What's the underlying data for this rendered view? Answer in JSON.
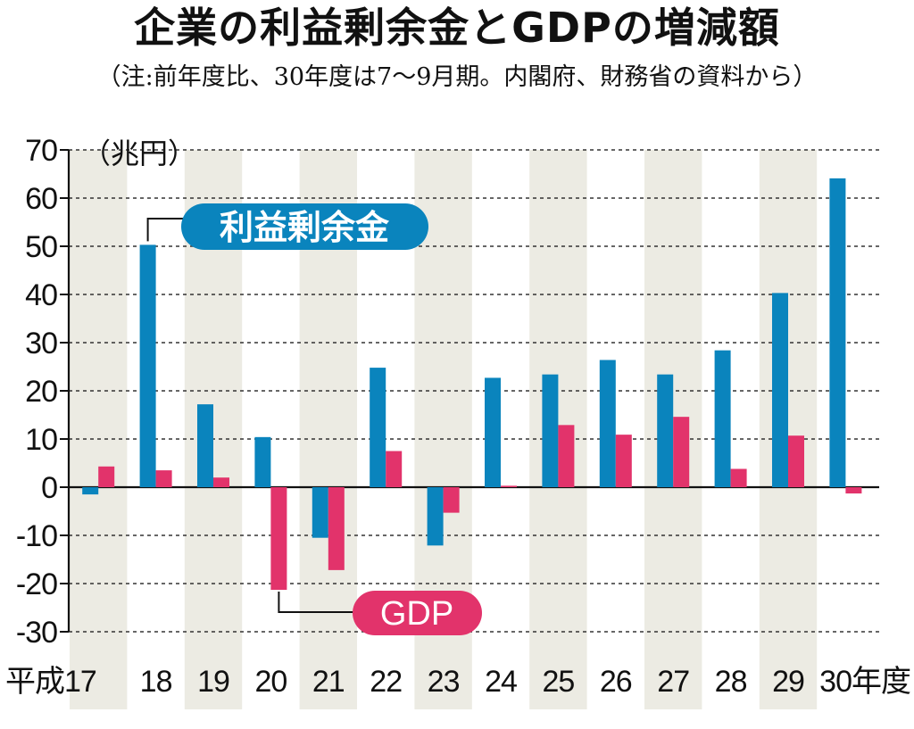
{
  "chart_data": {
    "type": "bar",
    "title": "企業の利益剰余金とGDPの増減額",
    "subtitle": "（注:前年度比、30年度は7〜9月期。内閣府、財務省の資料から）",
    "ylabel": "（兆円）",
    "ylim": [
      -30,
      70
    ],
    "yticks": [
      70,
      60,
      50,
      40,
      30,
      20,
      10,
      0,
      -10,
      -20,
      -30
    ],
    "categories": [
      "平成17",
      "18",
      "19",
      "20",
      "21",
      "22",
      "23",
      "24",
      "25",
      "26",
      "27",
      "28",
      "29",
      "30年度"
    ],
    "grid": true,
    "legend": "inline callouts",
    "series": [
      {
        "name": "利益剰余金",
        "color": "#0a84bd",
        "values": [
          -1.5,
          50.3,
          17.2,
          10.4,
          -10.5,
          24.8,
          -12.1,
          22.7,
          23.4,
          26.4,
          23.4,
          28.4,
          40.3,
          64.1
        ]
      },
      {
        "name": "GDP",
        "color": "#e2336b",
        "values": [
          4.3,
          3.5,
          2.0,
          -21.3,
          -17.2,
          7.5,
          -5.3,
          0.3,
          12.9,
          10.9,
          14.6,
          3.8,
          10.7,
          -1.3
        ]
      }
    ]
  },
  "colors": {
    "stripe": "#ecebe3",
    "grid": "#333333"
  }
}
